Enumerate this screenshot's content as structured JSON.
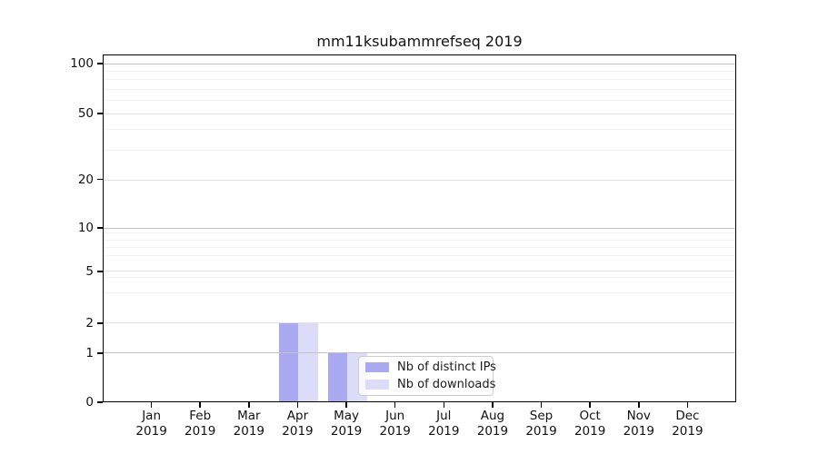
{
  "figure": {
    "background_color": "#ffffff"
  },
  "chart_data": {
    "type": "bar",
    "title": "mm11ksubammrefseq 2019",
    "xlabel": "",
    "ylabel": "",
    "categories": [
      "Jan",
      "Feb",
      "Mar",
      "Apr",
      "May",
      "Jun",
      "Jul",
      "Aug",
      "Sep",
      "Oct",
      "Nov",
      "Dec"
    ],
    "category_year": "2019",
    "series": [
      {
        "name": "Nb of distinct IPs",
        "color": "#a9a9f2",
        "values": [
          0,
          0,
          0,
          2,
          1,
          0,
          0,
          0,
          0,
          0,
          0,
          0
        ]
      },
      {
        "name": "Nb of downloads",
        "color": "#dcdcf8",
        "values": [
          0,
          0,
          0,
          2,
          1,
          0,
          0,
          0,
          0,
          0,
          0,
          0
        ]
      }
    ],
    "yscale": "symlog",
    "ylim": [
      0,
      120
    ],
    "grid": true,
    "grid_above_bars": true,
    "legend_position": "lower center inside plot",
    "yticks": [
      {
        "value": 100,
        "label": "100",
        "pct": 2.6,
        "emphasis": "strong"
      },
      {
        "value": 50,
        "label": "50",
        "pct": 17.0,
        "emphasis": "medium"
      },
      {
        "value": 20,
        "label": "20",
        "pct": 36.0,
        "emphasis": "medium"
      },
      {
        "value": 10,
        "label": "10",
        "pct": 49.9,
        "emphasis": "strong"
      },
      {
        "value": 5,
        "label": "5",
        "pct": 62.4,
        "emphasis": "medium"
      },
      {
        "value": 2,
        "label": "2",
        "pct": 77.3,
        "emphasis": "medium"
      },
      {
        "value": 1,
        "label": "1",
        "pct": 85.9,
        "emphasis": "strong"
      },
      {
        "value": 0,
        "label": "0",
        "pct": 100,
        "emphasis": "none"
      }
    ],
    "minor_gridlines_pct": [
      4.7,
      7.0,
      9.9,
      13.1,
      21.4,
      27.4,
      51.4,
      53.3,
      55.4,
      58.0,
      64.2,
      68.7
    ]
  },
  "legend": {
    "items": [
      {
        "label": "Nb of distinct IPs",
        "color": "#a9a9f2"
      },
      {
        "label": "Nb of downloads",
        "color": "#dcdcf8"
      }
    ]
  }
}
